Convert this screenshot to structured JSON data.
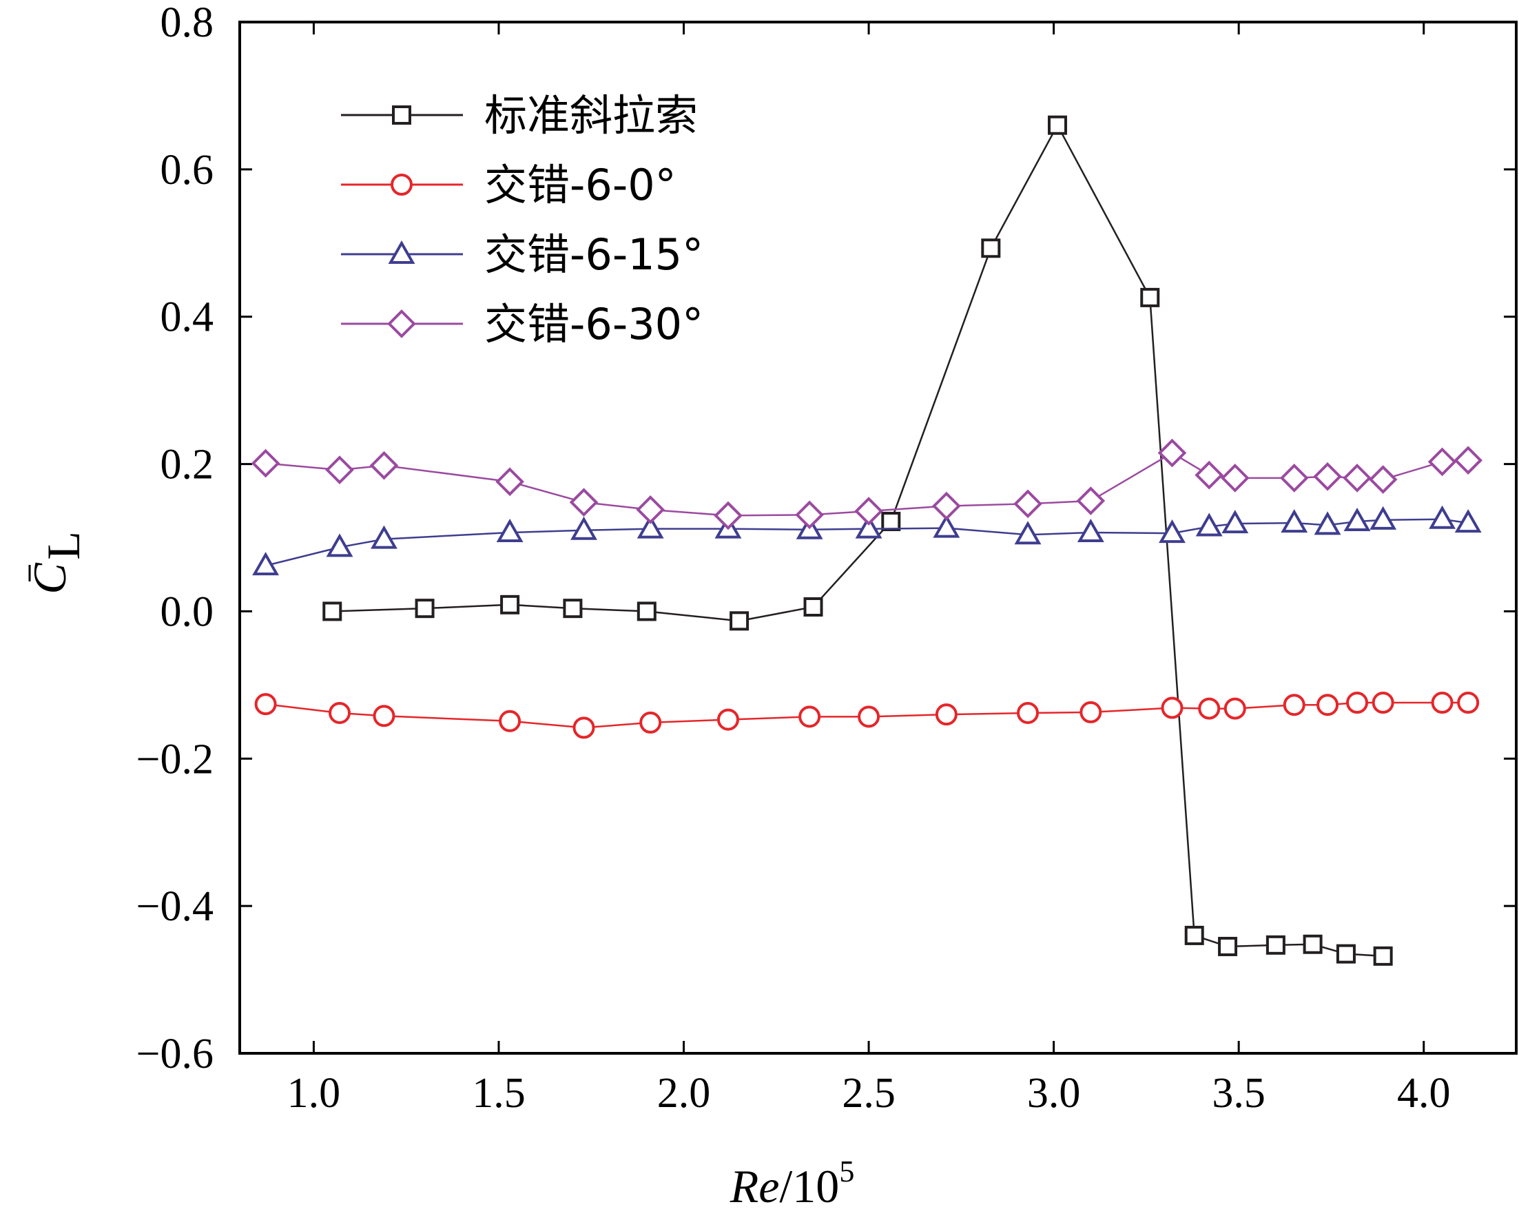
{
  "chart_data": {
    "type": "line",
    "title": "",
    "xlabel": {
      "base": "Re",
      "suffix": "/10",
      "exponent": "5"
    },
    "ylabel": {
      "bar_symbol": "C",
      "subscript": "L"
    },
    "xlim": [
      0.8,
      4.25
    ],
    "ylim": [
      -0.6,
      0.8
    ],
    "x_ticks": [
      1.0,
      1.5,
      2.0,
      2.5,
      3.0,
      3.5,
      4.0
    ],
    "x_tick_labels": [
      "1.0",
      "1.5",
      "2.0",
      "2.5",
      "3.0",
      "3.5",
      "4.0"
    ],
    "y_ticks": [
      0.8,
      0.6,
      0.4,
      0.2,
      0.0,
      -0.2,
      -0.4,
      -0.6
    ],
    "y_tick_labels": [
      "0.8",
      "0.6",
      "0.4",
      "0.2",
      "0.0",
      "−0.2",
      "−0.4",
      "−0.6"
    ],
    "grid": false,
    "legend_position": "top-left",
    "series": [
      {
        "name": "标准斜拉索",
        "color": "#231f20",
        "marker": "square",
        "x": [
          1.05,
          1.3,
          1.53,
          1.7,
          1.9,
          2.15,
          2.35,
          2.56,
          2.83,
          3.01,
          3.26,
          3.38,
          3.47,
          3.6,
          3.7,
          3.79,
          3.89
        ],
        "y": [
          0.0,
          0.004,
          0.009,
          0.004,
          0.0,
          -0.013,
          0.006,
          0.122,
          0.493,
          0.66,
          0.426,
          -0.44,
          -0.455,
          -0.453,
          -0.452,
          -0.465,
          -0.468
        ]
      },
      {
        "name": "交错-6-0°",
        "color": "#e5262a",
        "marker": "circle",
        "x": [
          0.87,
          1.07,
          1.19,
          1.53,
          1.73,
          1.91,
          2.12,
          2.34,
          2.5,
          2.71,
          2.93,
          3.1,
          3.32,
          3.42,
          3.49,
          3.65,
          3.74,
          3.82,
          3.89,
          4.05,
          4.12
        ],
        "y": [
          -0.126,
          -0.138,
          -0.142,
          -0.149,
          -0.158,
          -0.151,
          -0.147,
          -0.143,
          -0.143,
          -0.14,
          -0.138,
          -0.137,
          -0.131,
          -0.132,
          -0.132,
          -0.127,
          -0.127,
          -0.124,
          -0.124,
          -0.124,
          -0.124
        ]
      },
      {
        "name": "交错-6-15°",
        "color": "#3f3d8f",
        "marker": "triangle",
        "x": [
          0.87,
          1.07,
          1.19,
          1.53,
          1.73,
          1.91,
          2.12,
          2.34,
          2.5,
          2.71,
          2.93,
          3.1,
          3.32,
          3.42,
          3.49,
          3.65,
          3.74,
          3.82,
          3.89,
          4.05,
          4.12
        ],
        "y": [
          0.062,
          0.087,
          0.098,
          0.107,
          0.11,
          0.112,
          0.112,
          0.111,
          0.112,
          0.113,
          0.104,
          0.107,
          0.106,
          0.115,
          0.119,
          0.12,
          0.117,
          0.122,
          0.124,
          0.125,
          0.12
        ]
      },
      {
        "name": "交错-6-30°",
        "color": "#9b4aa0",
        "marker": "diamond",
        "x": [
          0.87,
          1.07,
          1.19,
          1.53,
          1.73,
          1.91,
          2.12,
          2.34,
          2.5,
          2.71,
          2.93,
          3.1,
          3.32,
          3.42,
          3.49,
          3.65,
          3.74,
          3.82,
          3.89,
          4.05,
          4.12
        ],
        "y": [
          0.201,
          0.192,
          0.198,
          0.176,
          0.148,
          0.138,
          0.13,
          0.131,
          0.136,
          0.143,
          0.146,
          0.15,
          0.215,
          0.185,
          0.181,
          0.181,
          0.183,
          0.181,
          0.179,
          0.203,
          0.205
        ]
      }
    ]
  }
}
